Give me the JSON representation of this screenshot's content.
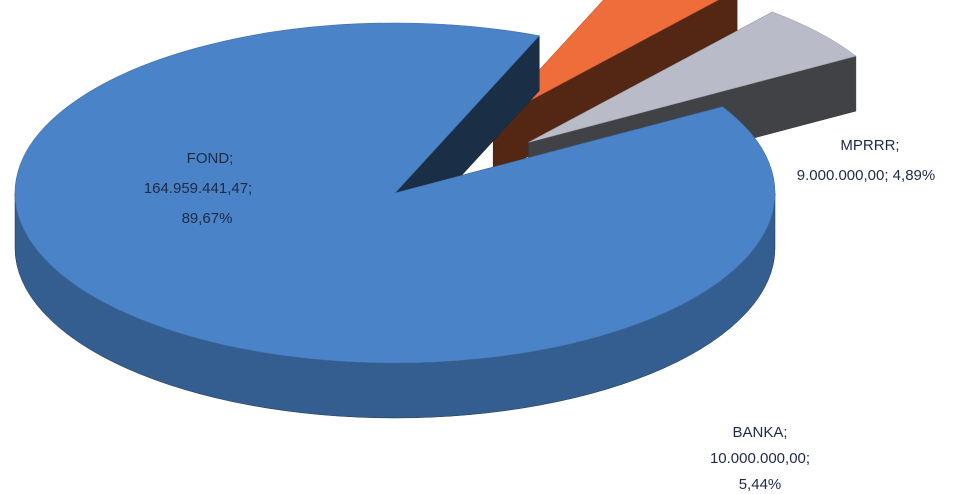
{
  "chart_data": {
    "type": "pie",
    "style": "3d-exploded",
    "slices": [
      {
        "name": "FOND",
        "value": 164959441.47,
        "value_label": "164.959.441,47",
        "percent": 89.67,
        "percent_label": "89,67%",
        "color": "#4a83c8"
      },
      {
        "name": "MPRRR",
        "value": 9000000.0,
        "value_label": "9.000.000,00",
        "percent": 4.89,
        "percent_label": "4,89%",
        "color": "#ef6d3a"
      },
      {
        "name": "BANKA",
        "value": 10000000.0,
        "value_label": "10.000.000,00",
        "percent": 5.44,
        "percent_label": "5,44%",
        "color": "#b9bcc8"
      }
    ],
    "data_labels": [
      {
        "slice": "FOND",
        "lines": [
          "FOND;",
          "164.959.441,47;",
          "89,67%"
        ]
      },
      {
        "slice": "MPRRR",
        "lines": [
          "MPRRR;",
          "9.000.000,00; 4,89%"
        ]
      },
      {
        "slice": "BANKA",
        "lines": [
          "BANKA;",
          "10.000.000,00;",
          "5,44%"
        ]
      }
    ],
    "title": "",
    "legend": "none"
  }
}
